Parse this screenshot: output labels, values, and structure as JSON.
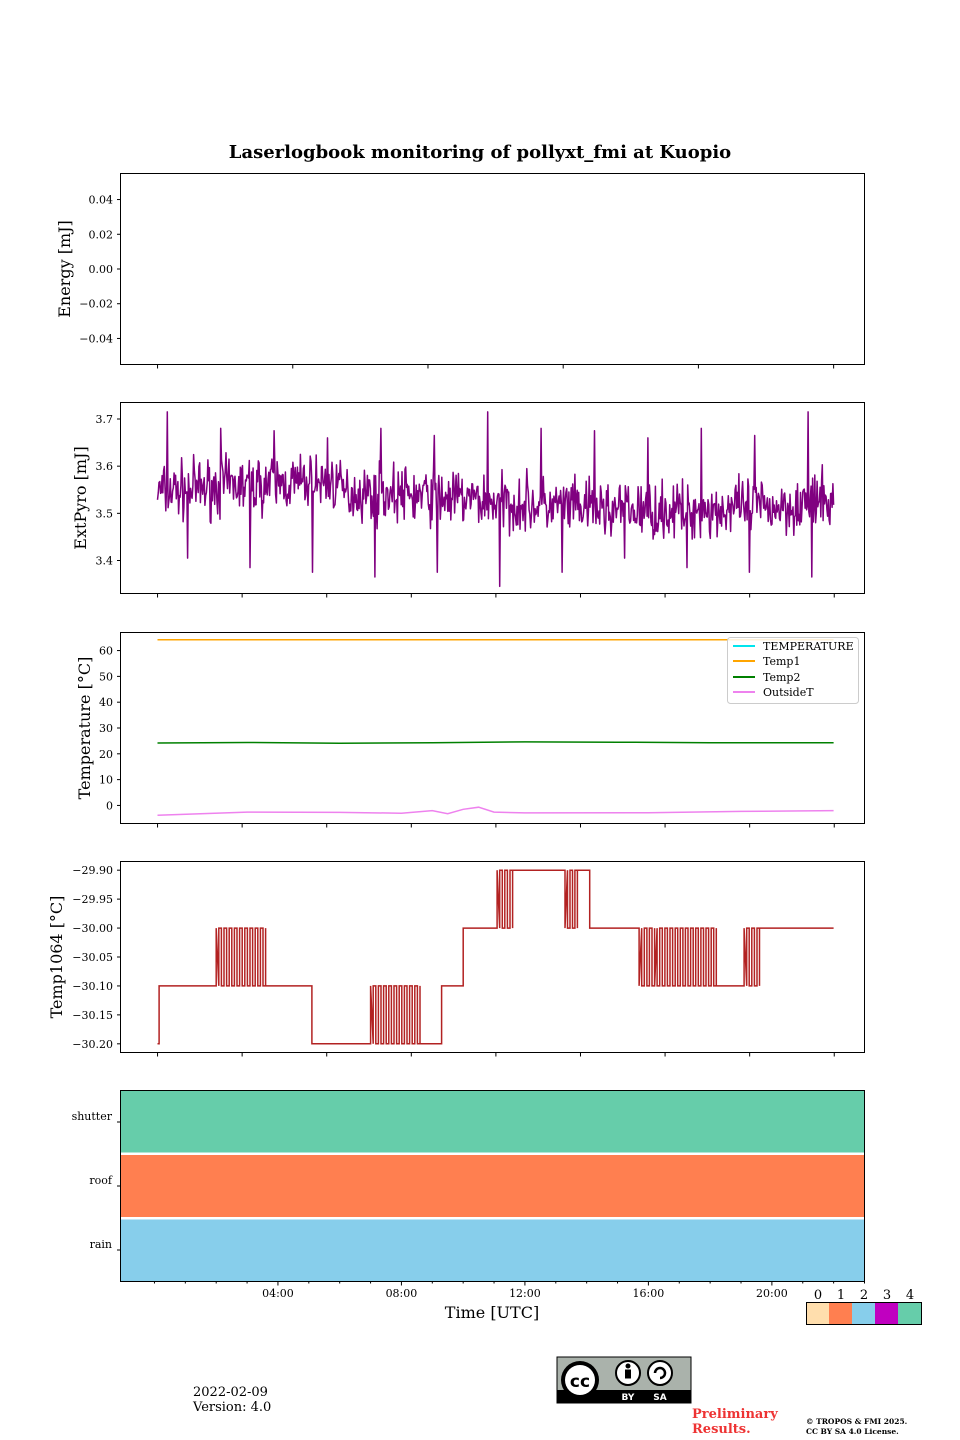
{
  "title": "Laserlogbook monitoring of pollyxt_fmi at Kuopio",
  "footer": {
    "date": "2022-02-09",
    "version": "Version: 4.0"
  },
  "preliminary": [
    "Preliminary",
    "Results."
  ],
  "copyright": [
    "© TROPOS & FMI 2025.",
    "CC BY SA 4.0 License."
  ],
  "license": {
    "by": "BY",
    "sa": "SA",
    "cc": "cc"
  },
  "colors": {
    "purple": "#800080",
    "orange": "#ffa500",
    "green": "#008000",
    "violet": "#ee82ee",
    "cyan": "#00e5ee",
    "brick": "#b22222"
  },
  "chart_data": [
    {
      "type": "line",
      "id": "energy",
      "ylabel": "Energy [mJ]",
      "ylim": [
        -0.055,
        0.055
      ],
      "yticks": [
        "0.04",
        "0.02",
        "0.00",
        "−0.02",
        "−0.04"
      ],
      "ytick_values": [
        0.04,
        0.02,
        0.0,
        -0.02,
        -0.04
      ],
      "series": []
    },
    {
      "type": "line",
      "id": "extpyro",
      "ylabel": "ExtPyro [mJ]",
      "ylim": [
        3.33,
        3.735
      ],
      "yticks": [
        "3.7",
        "3.6",
        "3.5",
        "3.4"
      ],
      "ytick_values": [
        3.7,
        3.6,
        3.5,
        3.4
      ],
      "series": [
        {
          "name": "ExtPyro",
          "color": "#800080",
          "x_range_hours": [
            0.1,
            22.0
          ],
          "mean": 3.525,
          "noise": 0.045,
          "spikes_max": [
            3.715,
            3.68,
            3.675,
            3.66,
            3.68,
            3.665
          ],
          "spikes_min": [
            3.405,
            3.385,
            3.375,
            3.365,
            3.375,
            3.345,
            3.375
          ]
        }
      ]
    },
    {
      "type": "line",
      "id": "temperature",
      "ylabel": "Temperature [°C]",
      "ylim": [
        -7,
        67
      ],
      "yticks": [
        "60",
        "50",
        "40",
        "30",
        "20",
        "10",
        "0"
      ],
      "ytick_values": [
        60,
        50,
        40,
        30,
        20,
        10,
        0
      ],
      "legend": [
        "TEMPERATURE",
        "Temp1",
        "Temp2",
        "OutsideT"
      ],
      "legend_loc": "top-right",
      "series": [
        {
          "name": "TEMPERATURE",
          "color": "#00e5ee",
          "x": [],
          "y": []
        },
        {
          "name": "Temp1",
          "color": "#ffa500",
          "x": [
            0.1,
            22.0
          ],
          "y": [
            64.2,
            64.2
          ]
        },
        {
          "name": "Temp2",
          "color": "#008000",
          "x": [
            0.1,
            3,
            6,
            9,
            12,
            15,
            18,
            22.0
          ],
          "y": [
            24.2,
            24.4,
            24.1,
            24.3,
            24.6,
            24.5,
            24.3,
            24.3
          ]
        },
        {
          "name": "OutsideT",
          "color": "#ee82ee",
          "x": [
            0.1,
            3,
            6,
            8,
            9,
            9.5,
            10,
            10.5,
            11,
            12,
            16,
            19,
            22.0
          ],
          "y": [
            -3.8,
            -2.6,
            -2.7,
            -3,
            -2,
            -3.2,
            -1.5,
            -0.7,
            -2.6,
            -2.9,
            -2.8,
            -2.3,
            -2
          ]
        }
      ]
    },
    {
      "type": "line",
      "id": "temp1064",
      "ylabel": "Temp1064 [°C]",
      "ylim": [
        -30.215,
        -29.885
      ],
      "yticks": [
        "−29.90",
        "−29.95",
        "−30.00",
        "−30.05",
        "−30.10",
        "−30.15",
        "−30.20"
      ],
      "ytick_values": [
        -29.9,
        -29.95,
        -30.0,
        -30.05,
        -30.1,
        -30.15,
        -30.2
      ],
      "series": [
        {
          "name": "Temp1064",
          "color": "#b22222",
          "segments": [
            [
              0.1,
              0.15,
              -30.2
            ],
            [
              0.15,
              2.0,
              -30.1
            ],
            [
              2.0,
              3.6,
              -30.0,
              -30.1
            ],
            [
              3.6,
              5.1,
              -30.1
            ],
            [
              5.1,
              7.0,
              -30.2
            ],
            [
              7.0,
              8.6,
              -30.1,
              -30.2
            ],
            [
              8.6,
              9.3,
              -30.2
            ],
            [
              9.3,
              10.0,
              -30.1
            ],
            [
              10.0,
              11.1,
              -30.0
            ],
            [
              11.1,
              11.6,
              -29.9,
              -30.0
            ],
            [
              11.6,
              13.3,
              -29.9
            ],
            [
              13.3,
              13.7,
              -30.0,
              -29.9
            ],
            [
              13.7,
              14.1,
              -29.9
            ],
            [
              14.1,
              15.7,
              -30.0
            ],
            [
              15.7,
              16.2,
              -30.1,
              -30.0
            ],
            [
              16.2,
              18.2,
              -30.1,
              -30.0
            ],
            [
              18.2,
              19.1,
              -30.1
            ],
            [
              19.1,
              19.6,
              -30.0,
              -30.1
            ],
            [
              19.6,
              22.0,
              -30.0
            ]
          ]
        }
      ]
    },
    {
      "type": "heatmap",
      "id": "status",
      "rows": [
        "shutter",
        "roof",
        "rain"
      ],
      "values": [
        4,
        1,
        2
      ],
      "xlim_hours": [
        -1.1,
        23.0
      ]
    }
  ],
  "xaxis": {
    "label": "Time [UTC]",
    "ticks": [
      "04:00",
      "08:00",
      "12:00",
      "16:00",
      "20:00"
    ],
    "tick_hours": [
      4,
      8,
      12,
      16,
      20
    ]
  },
  "colorbar": {
    "ticks": [
      "0",
      "1",
      "2",
      "3",
      "4"
    ],
    "colors": [
      "#ffdead",
      "#ff7f50",
      "#87ceeb",
      "#c000c0",
      "#66cdaa"
    ]
  }
}
